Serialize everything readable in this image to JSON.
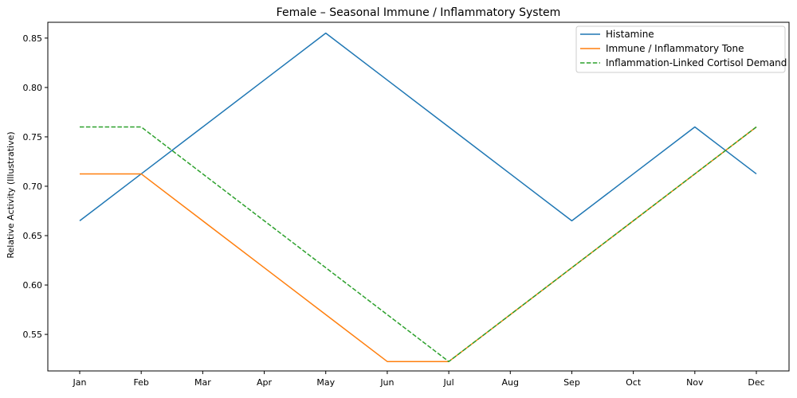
{
  "chart_data": {
    "type": "line",
    "title": "Female – Seasonal Immune / Inflammatory System",
    "xlabel": "",
    "ylabel": "Relative Activity (Illustrative)",
    "categories": [
      "Jan",
      "Feb",
      "Mar",
      "Apr",
      "May",
      "Jun",
      "Jul",
      "Aug",
      "Sep",
      "Oct",
      "Nov",
      "Dec"
    ],
    "ylim": [
      0.513,
      0.866
    ],
    "yticks": [
      0.55,
      0.6,
      0.65,
      0.7,
      0.75,
      0.8,
      0.85
    ],
    "ytick_labels": [
      "0.55",
      "0.60",
      "0.65",
      "0.70",
      "0.75",
      "0.80",
      "0.85"
    ],
    "grid": false,
    "legend_position": "top-right",
    "series": [
      {
        "name": "Histamine",
        "color": "#1f77b4",
        "dash": "solid",
        "values": [
          0.665,
          0.7125,
          0.76,
          0.8075,
          0.855,
          0.8075,
          0.76,
          0.7125,
          0.665,
          0.7125,
          0.76,
          0.7125
        ]
      },
      {
        "name": "Immune / Inflammatory Tone",
        "color": "#ff7f0e",
        "dash": "solid",
        "values": [
          0.7125,
          0.7125,
          0.665,
          0.6175,
          0.57,
          0.5225,
          0.5225,
          0.57,
          0.6175,
          0.665,
          0.7125,
          0.76
        ]
      },
      {
        "name": "Inflammation-Linked Cortisol Demand",
        "color": "#2ca02c",
        "dash": "dashed",
        "values": [
          0.76,
          0.76,
          0.7125,
          0.665,
          0.6175,
          0.57,
          0.5225,
          0.57,
          0.6175,
          0.665,
          0.7125,
          0.76
        ]
      }
    ]
  }
}
